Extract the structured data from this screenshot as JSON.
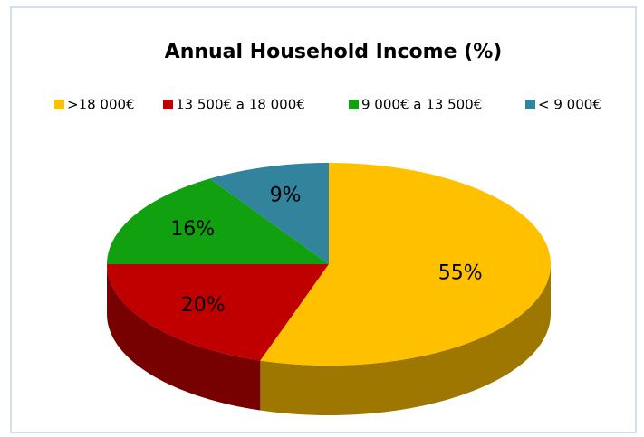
{
  "chart_data": {
    "type": "pie",
    "title": "Annual Household Income (%)",
    "categories": [
      ">18 000€",
      "13 500€ a 18 000€",
      "9 000€ a 13 500€",
      "< 9 000€"
    ],
    "values": [
      55,
      20,
      16,
      9
    ],
    "value_labels": [
      "55%",
      "20%",
      "16%",
      "9%"
    ],
    "colors": [
      "#ffc000",
      "#c00000",
      "#10a010",
      "#31849b"
    ],
    "legend": "top",
    "three_d": true
  }
}
